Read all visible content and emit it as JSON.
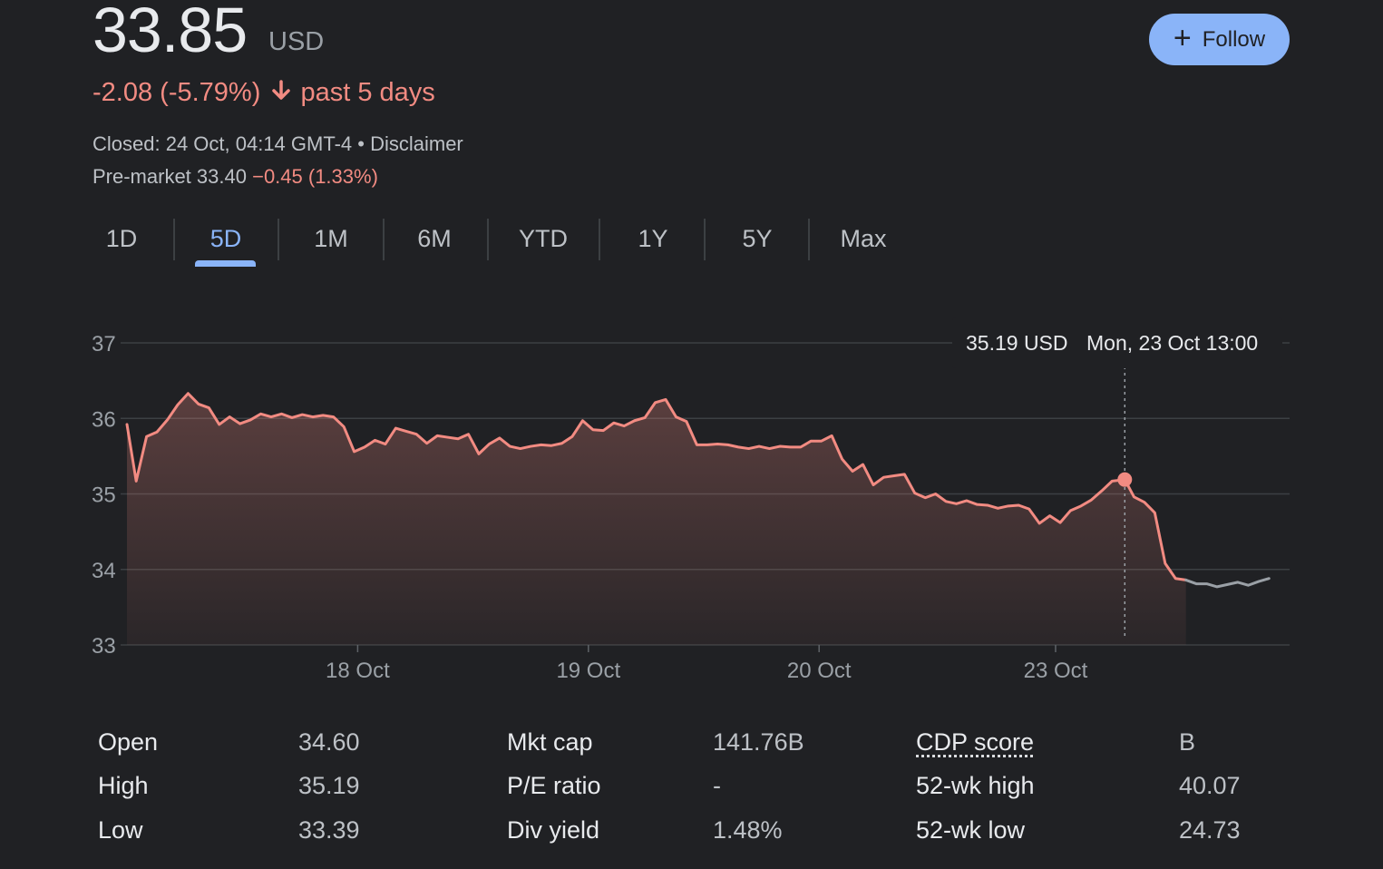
{
  "quote": {
    "price": "33.85",
    "currency": "USD",
    "change": "-2.08 (-5.79%)",
    "period": "past 5 days",
    "closed_text": "Closed: 24 Oct, 04:14 GMT-4",
    "separator": " • ",
    "disclaimer": "Disclaimer",
    "premarket_label": "Pre-market 33.40",
    "premarket_change": "−0.45 (1.33%)"
  },
  "follow_button": {
    "label": "Follow"
  },
  "tabs": [
    {
      "label": "1D",
      "active": false
    },
    {
      "label": "5D",
      "active": true
    },
    {
      "label": "1M",
      "active": false
    },
    {
      "label": "6M",
      "active": false
    },
    {
      "label": "YTD",
      "active": false
    },
    {
      "label": "1Y",
      "active": false
    },
    {
      "label": "5Y",
      "active": false
    },
    {
      "label": "Max",
      "active": false
    }
  ],
  "colors": {
    "negative": "#f28b82",
    "accent": "#8ab4f8",
    "background": "#202124",
    "premarket_line": "#9aa0a6"
  },
  "chart_data": {
    "type": "line",
    "ylim": [
      33,
      37
    ],
    "y_ticks": [
      37,
      36,
      35,
      34,
      33
    ],
    "x_ticks": [
      {
        "label": "18 Oct",
        "x": 20
      },
      {
        "label": "19 Oct",
        "x": 40
      },
      {
        "label": "20 Oct",
        "x": 60
      },
      {
        "label": "23 Oct",
        "x": 80.5
      }
    ],
    "grid": true,
    "tooltip": {
      "price": "35.19 USD",
      "date": "Mon, 23 Oct 13:00",
      "x": 86.5,
      "y": 35.19
    },
    "series": [
      {
        "values": [
          [
            0,
            35.92
          ],
          [
            0.8,
            35.17
          ],
          [
            1.7,
            35.76
          ],
          [
            2.6,
            35.82
          ],
          [
            3.5,
            35.98
          ],
          [
            4.4,
            36.18
          ],
          [
            5.3,
            36.33
          ],
          [
            6.2,
            36.19
          ],
          [
            7.1,
            36.14
          ],
          [
            8.0,
            35.92
          ],
          [
            8.9,
            36.02
          ],
          [
            9.8,
            35.93
          ],
          [
            10.7,
            35.98
          ],
          [
            11.6,
            36.06
          ],
          [
            12.5,
            36.02
          ],
          [
            13.4,
            36.06
          ],
          [
            14.3,
            36.01
          ],
          [
            15.2,
            36.05
          ],
          [
            16.1,
            36.02
          ],
          [
            17.0,
            36.04
          ],
          [
            17.9,
            36.02
          ],
          [
            18.8,
            35.89
          ],
          [
            19.7,
            35.56
          ],
          [
            20.6,
            35.62
          ],
          [
            21.5,
            35.71
          ],
          [
            22.4,
            35.66
          ],
          [
            23.3,
            35.87
          ],
          [
            24.2,
            35.83
          ],
          [
            25.1,
            35.79
          ],
          [
            26.0,
            35.67
          ],
          [
            26.9,
            35.77
          ],
          [
            27.8,
            35.75
          ],
          [
            28.7,
            35.73
          ],
          [
            29.6,
            35.79
          ],
          [
            30.5,
            35.53
          ],
          [
            31.4,
            35.66
          ],
          [
            32.3,
            35.74
          ],
          [
            33.2,
            35.63
          ],
          [
            34.1,
            35.6
          ],
          [
            35.0,
            35.63
          ],
          [
            35.9,
            35.65
          ],
          [
            36.8,
            35.64
          ],
          [
            37.7,
            35.67
          ],
          [
            38.6,
            35.76
          ],
          [
            39.5,
            35.97
          ],
          [
            40.4,
            35.85
          ],
          [
            41.3,
            35.84
          ],
          [
            42.2,
            35.94
          ],
          [
            43.1,
            35.9
          ],
          [
            44.0,
            35.97
          ],
          [
            44.9,
            36.01
          ],
          [
            45.8,
            36.21
          ],
          [
            46.7,
            36.25
          ],
          [
            47.6,
            36.02
          ],
          [
            48.5,
            35.96
          ],
          [
            49.4,
            35.65
          ],
          [
            50.3,
            35.65
          ],
          [
            51.2,
            35.66
          ],
          [
            52.1,
            35.65
          ],
          [
            53.0,
            35.62
          ],
          [
            53.9,
            35.6
          ],
          [
            54.8,
            35.63
          ],
          [
            55.7,
            35.6
          ],
          [
            56.6,
            35.63
          ],
          [
            57.5,
            35.62
          ],
          [
            58.4,
            35.62
          ],
          [
            59.3,
            35.7
          ],
          [
            60.2,
            35.7
          ],
          [
            61.1,
            35.77
          ],
          [
            62.0,
            35.46
          ],
          [
            62.9,
            35.3
          ],
          [
            63.8,
            35.39
          ],
          [
            64.7,
            35.12
          ],
          [
            65.6,
            35.22
          ],
          [
            66.5,
            35.24
          ],
          [
            67.4,
            35.26
          ],
          [
            68.3,
            35.01
          ],
          [
            69.2,
            34.95
          ],
          [
            70.1,
            35.0
          ],
          [
            71.0,
            34.9
          ],
          [
            71.9,
            34.87
          ],
          [
            72.8,
            34.91
          ],
          [
            73.7,
            34.86
          ],
          [
            74.6,
            34.85
          ],
          [
            75.5,
            34.81
          ],
          [
            76.4,
            34.84
          ],
          [
            77.3,
            34.85
          ],
          [
            78.2,
            34.8
          ],
          [
            79.1,
            34.61
          ],
          [
            80.0,
            34.71
          ],
          [
            80.9,
            34.62
          ],
          [
            81.8,
            34.78
          ],
          [
            82.7,
            34.84
          ],
          [
            83.6,
            34.92
          ],
          [
            84.5,
            35.04
          ],
          [
            85.4,
            35.17
          ],
          [
            86.5,
            35.19
          ],
          [
            87.3,
            34.96
          ],
          [
            88.2,
            34.89
          ],
          [
            89.1,
            34.75
          ],
          [
            90.0,
            34.08
          ],
          [
            90.9,
            33.88
          ],
          [
            91.8,
            33.86
          ]
        ]
      },
      {
        "values": [
          [
            91.8,
            33.86
          ],
          [
            92.7,
            33.81
          ],
          [
            93.6,
            33.81
          ],
          [
            94.5,
            33.77
          ],
          [
            95.4,
            33.8
          ],
          [
            96.3,
            33.83
          ],
          [
            97.2,
            33.79
          ],
          [
            98.1,
            33.84
          ],
          [
            99.0,
            33.88
          ]
        ]
      }
    ]
  },
  "stats": [
    [
      {
        "label": "Open",
        "value": "34.60"
      },
      {
        "label": "Mkt cap",
        "value": "141.76B"
      },
      {
        "label": "CDP score",
        "value": "B"
      }
    ],
    [
      {
        "label": "High",
        "value": "35.19"
      },
      {
        "label": "P/E ratio",
        "value": "-"
      },
      {
        "label": "52-wk high",
        "value": "40.07"
      }
    ],
    [
      {
        "label": "Low",
        "value": "33.39"
      },
      {
        "label": "Div yield",
        "value": "1.48%"
      },
      {
        "label": "52-wk low",
        "value": "24.73"
      }
    ]
  ]
}
